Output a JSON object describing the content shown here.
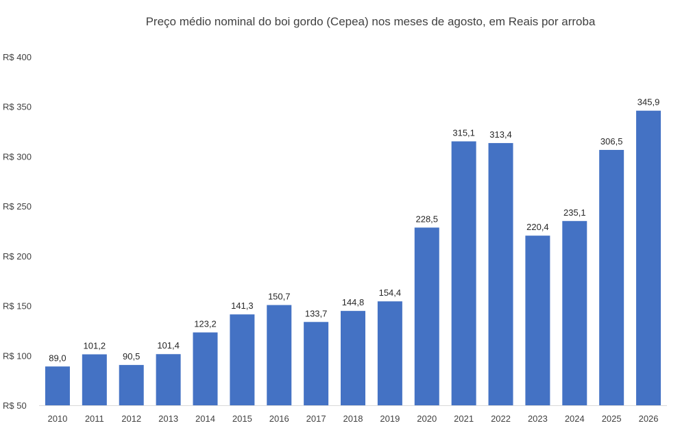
{
  "chart_data": {
    "type": "bar",
    "title": "Preço médio nominal do boi gordo (Cepea) nos meses de agosto, em Reais por arroba",
    "xlabel": "",
    "ylabel": "",
    "categories": [
      "2010",
      "2011",
      "2012",
      "2013",
      "2014",
      "2015",
      "2016",
      "2017",
      "2018",
      "2019",
      "2020",
      "2021",
      "2022",
      "2023",
      "2024",
      "2025",
      "2026"
    ],
    "values": [
      89.0,
      101.2,
      90.5,
      101.4,
      123.2,
      141.3,
      150.7,
      133.7,
      144.8,
      154.4,
      228.5,
      315.1,
      313.4,
      220.4,
      235.1,
      306.5,
      345.9
    ],
    "data_labels": [
      "89,0",
      "101,2",
      "90,5",
      "101,4",
      "123,2",
      "141,3",
      "150,7",
      "133,7",
      "144,8",
      "154,4",
      "228,5",
      "315,1",
      "313,4",
      "220,4",
      "235,1",
      "306,5",
      "345,9"
    ],
    "ylim": [
      50,
      400
    ],
    "yticks": [
      50,
      100,
      150,
      200,
      250,
      300,
      350,
      400
    ],
    "ytick_labels": [
      "R$ 50",
      "R$ 100",
      "R$ 150",
      "R$ 200",
      "R$ 250",
      "R$ 300",
      "R$ 350",
      "R$ 400"
    ],
    "grid": false,
    "legend": "none",
    "bar_color": "#4472C4"
  }
}
